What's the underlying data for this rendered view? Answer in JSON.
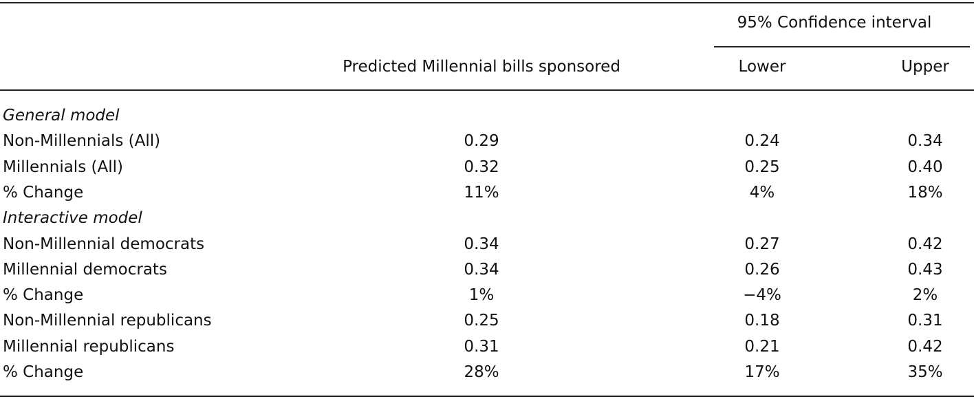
{
  "table": {
    "group_header": "95% Confidence interval",
    "columns": [
      "Predicted Millennial bills sponsored",
      "Lower",
      "Upper"
    ],
    "sections": [
      {
        "title": "General model",
        "rows": [
          [
            "Non-Millennials (All)",
            "0.29",
            "0.24",
            "0.34"
          ],
          [
            "Millennials (All)",
            "0.32",
            "0.25",
            "0.40"
          ],
          [
            "% Change",
            "11%",
            "4%",
            "18%"
          ]
        ]
      },
      {
        "title": "Interactive model",
        "rows": [
          [
            "Non-Millennial democrats",
            "0.34",
            "0.27",
            "0.42"
          ],
          [
            "Millennial democrats",
            "0.34",
            "0.26",
            "0.43"
          ],
          [
            "% Change",
            "1%",
            "−4%",
            "2%"
          ],
          [
            "Non-Millennial republicans",
            "0.25",
            "0.18",
            "0.31"
          ],
          [
            "Millennial republicans",
            "0.31",
            "0.21",
            "0.42"
          ],
          [
            "% Change",
            "28%",
            "17%",
            "35%"
          ]
        ]
      }
    ]
  }
}
